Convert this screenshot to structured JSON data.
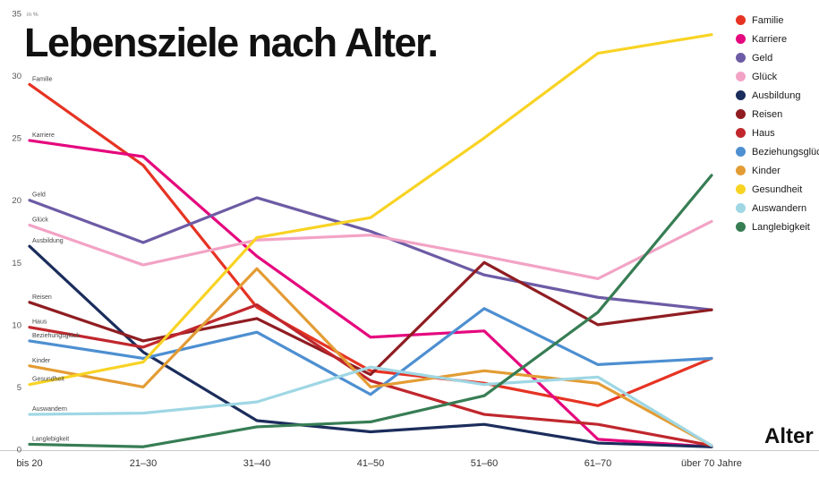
{
  "title": "Lebensziele nach Alter.",
  "axis": {
    "unit_label": "in %",
    "x_title": "Alter",
    "y_ticks": [
      0,
      5,
      10,
      15,
      20,
      25,
      30,
      35
    ]
  },
  "chart_data": {
    "type": "line",
    "title": "Lebensziele nach Alter.",
    "xlabel": "Alter",
    "ylabel": "in %",
    "ylim": [
      0,
      35
    ],
    "grid": false,
    "legend_position": "top-right",
    "categories": [
      "bis 20",
      "21–30",
      "31–40",
      "41–50",
      "51–60",
      "61–70",
      "über 70 Jahre"
    ],
    "series": [
      {
        "name": "Familie",
        "color": "#e63323",
        "values": [
          29.3,
          22.8,
          11.4,
          6.3,
          5.3,
          3.5,
          7.3
        ]
      },
      {
        "name": "Karriere",
        "color": "#e5087e",
        "values": [
          24.8,
          23.5,
          15.5,
          9.0,
          9.5,
          0.8,
          0.2
        ]
      },
      {
        "name": "Geld",
        "color": "#6d5ba5",
        "values": [
          20.0,
          16.6,
          20.2,
          17.5,
          14.0,
          12.2,
          11.2
        ]
      },
      {
        "name": "Glück",
        "color": "#f2a3c5",
        "values": [
          18.0,
          14.8,
          16.8,
          17.2,
          15.5,
          13.7,
          18.3
        ]
      },
      {
        "name": "Ausbildung",
        "color": "#1b2d5c",
        "values": [
          16.3,
          7.8,
          2.3,
          1.4,
          2.0,
          0.5,
          0.2
        ]
      },
      {
        "name": "Reisen",
        "color": "#8f1d22",
        "values": [
          11.8,
          8.7,
          10.5,
          6.0,
          15.0,
          10.0,
          11.2
        ]
      },
      {
        "name": "Haus",
        "color": "#c0272d",
        "values": [
          9.8,
          8.2,
          11.6,
          5.5,
          2.8,
          2.0,
          0.3
        ]
      },
      {
        "name": "Beziehungsglück",
        "color": "#4d8fd1",
        "values": [
          8.7,
          7.3,
          9.4,
          4.4,
          11.3,
          6.8,
          7.3
        ]
      },
      {
        "name": "Kinder",
        "color": "#e39c34",
        "values": [
          6.7,
          5.0,
          14.5,
          5.0,
          6.3,
          5.3,
          0.3
        ]
      },
      {
        "name": "Gesundheit",
        "color": "#f8d324",
        "values": [
          5.2,
          7.0,
          17.0,
          18.6,
          25.0,
          31.8,
          33.3
        ]
      },
      {
        "name": "Auswandern",
        "color": "#9fd7e4",
        "values": [
          2.8,
          2.9,
          3.8,
          6.6,
          5.2,
          5.8,
          0.3
        ]
      },
      {
        "name": "Langlebigkeit",
        "color": "#377d54",
        "values": [
          0.4,
          0.2,
          1.8,
          2.2,
          4.3,
          11.0,
          22.0
        ]
      }
    ]
  }
}
